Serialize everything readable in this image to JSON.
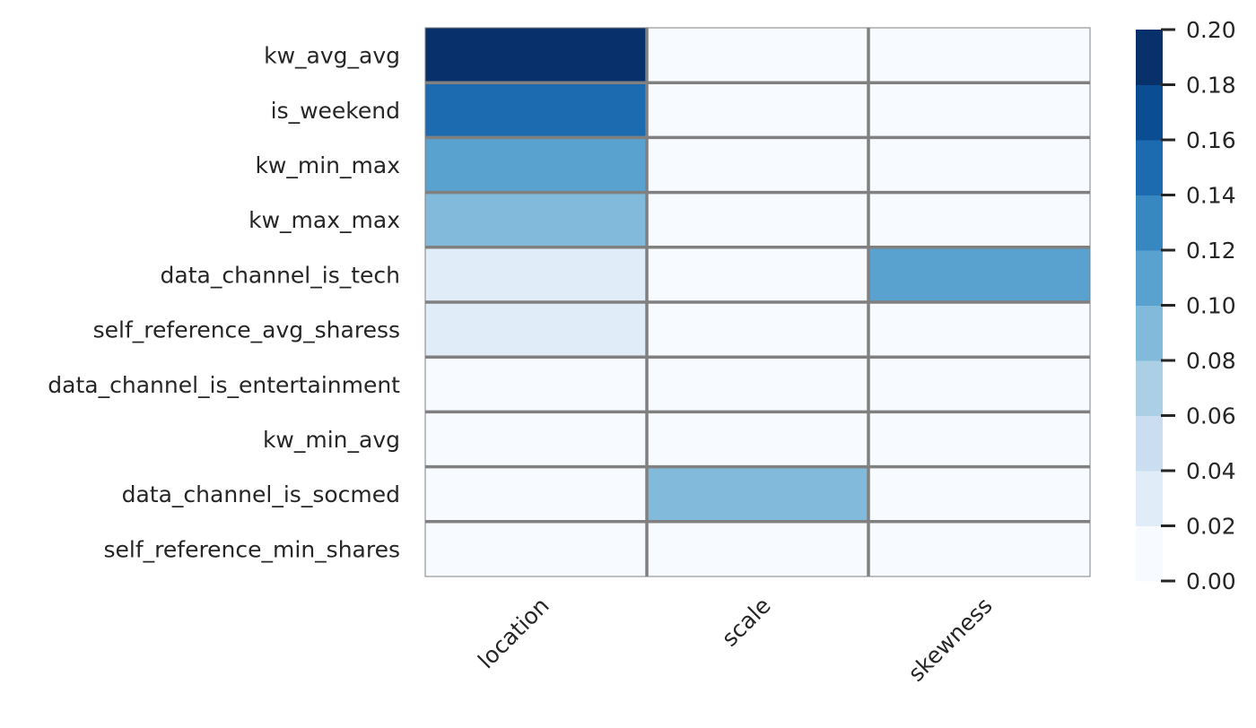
{
  "chart_data": {
    "type": "heatmap",
    "title": "",
    "xlabel": "",
    "ylabel": "",
    "columns": [
      "location",
      "scale",
      "skewness"
    ],
    "rows": [
      "kw_avg_avg",
      "is_weekend",
      "kw_min_max",
      "kw_max_max",
      "data_channel_is_tech",
      "self_reference_avg_sharess",
      "data_channel_is_entertainment",
      "kw_min_avg",
      "data_channel_is_socmed",
      "self_reference_min_shares"
    ],
    "values": [
      [
        0.195,
        0.0,
        0.0
      ],
      [
        0.15,
        0.0,
        0.0
      ],
      [
        0.11,
        0.0,
        0.0
      ],
      [
        0.09,
        0.0,
        0.0
      ],
      [
        0.04,
        0.0,
        0.11
      ],
      [
        0.03,
        0.0,
        0.0
      ],
      [
        0.0,
        0.0,
        0.0
      ],
      [
        0.0,
        0.0,
        0.0
      ],
      [
        0.0,
        0.09,
        0.0
      ],
      [
        0.0,
        0.0,
        0.0
      ]
    ],
    "colorbar": {
      "range": [
        0.0,
        0.2
      ],
      "bins": 10,
      "ticks": [
        "0.00",
        "0.02",
        "0.04",
        "0.06",
        "0.08",
        "0.10",
        "0.12",
        "0.14",
        "0.16",
        "0.18",
        "0.20"
      ],
      "colors": [
        "#f7fbff",
        "#e0ecf8",
        "#cbdef1",
        "#abd0e6",
        "#82badb",
        "#59a1cf",
        "#3787c0",
        "#1c6aaf",
        "#0b4d93",
        "#08306b"
      ]
    },
    "grid_color": "#808080"
  }
}
